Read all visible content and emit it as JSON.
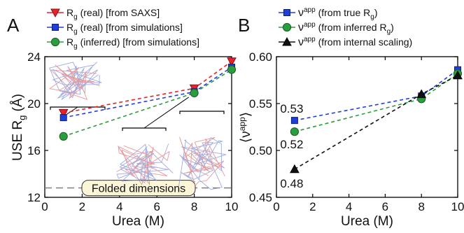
{
  "chart_data": [
    {
      "panel_label": "A",
      "type": "line",
      "xlabel": "Urea (M)",
      "ylabel": "USE R",
      "ylabel_sub": "g",
      "ylabel_unit": " (Å)",
      "xlim": [
        0,
        10
      ],
      "ylim": [
        12,
        24
      ],
      "xticks": [
        0,
        2,
        4,
        6,
        8,
        10
      ],
      "yticks": [
        12,
        16,
        20,
        24
      ],
      "grid": false,
      "legend_position": "top",
      "series": [
        {
          "main": "R",
          "sub": "g",
          "rest": " (real) [from SAXS]",
          "color": "#e8212a",
          "marker": "triangle-down",
          "x": [
            1,
            8,
            10
          ],
          "y": [
            19.2,
            21.3,
            23.6
          ]
        },
        {
          "main": "R",
          "sub": "g",
          "rest": " (real) [from simulations]",
          "color": "#1f3fd8",
          "marker": "square",
          "x": [
            1,
            8,
            10
          ],
          "y": [
            18.8,
            21.0,
            23.1
          ]
        },
        {
          "main": "R",
          "sub": "g",
          "rest": " (inferred) [from simulations]",
          "color": "#2a9d3c",
          "marker": "circle",
          "x": [
            1,
            8,
            10
          ],
          "y": [
            17.2,
            20.9,
            22.9
          ]
        }
      ],
      "reference_line": {
        "y": 12.8,
        "label": "Folded dimensions"
      }
    },
    {
      "panel_label": "B",
      "type": "line",
      "xlabel": "Urea (M)",
      "ylabel": "⟨ν",
      "ylabel_sup": "app",
      "ylabel_end": "⟩",
      "xlim": [
        0,
        10
      ],
      "ylim": [
        0.45,
        0.6
      ],
      "xticks": [
        0,
        2,
        4,
        6,
        8,
        10
      ],
      "yticks": [
        0.45,
        0.5,
        0.55,
        0.6
      ],
      "grid": false,
      "legend_position": "top",
      "series": [
        {
          "main": "ν",
          "sup": "app",
          "rest": " (from true R",
          "sub": "g",
          "close": ")",
          "color": "#1f3fd8",
          "marker": "square",
          "x": [
            1,
            8,
            10
          ],
          "y": [
            0.532,
            0.558,
            0.586
          ]
        },
        {
          "main": "ν",
          "sup": "app",
          "rest": " (from inferred R",
          "sub": "g",
          "close": ")",
          "color": "#2a9d3c",
          "marker": "circle",
          "x": [
            1,
            8,
            10
          ],
          "y": [
            0.52,
            0.555,
            0.582
          ]
        },
        {
          "main": "ν",
          "sup": "app",
          "rest": " (from internal scaling)",
          "sub": "",
          "close": "",
          "color": "#111111",
          "marker": "triangle-up",
          "x": [
            1,
            8,
            10
          ],
          "y": [
            0.48,
            0.56,
            0.58
          ]
        }
      ],
      "annotations": [
        {
          "text": "0.53",
          "x": 1,
          "y": 0.532
        },
        {
          "text": "0.52",
          "x": 1,
          "y": 0.52
        },
        {
          "text": "0.48",
          "x": 1,
          "y": 0.48
        }
      ]
    }
  ]
}
